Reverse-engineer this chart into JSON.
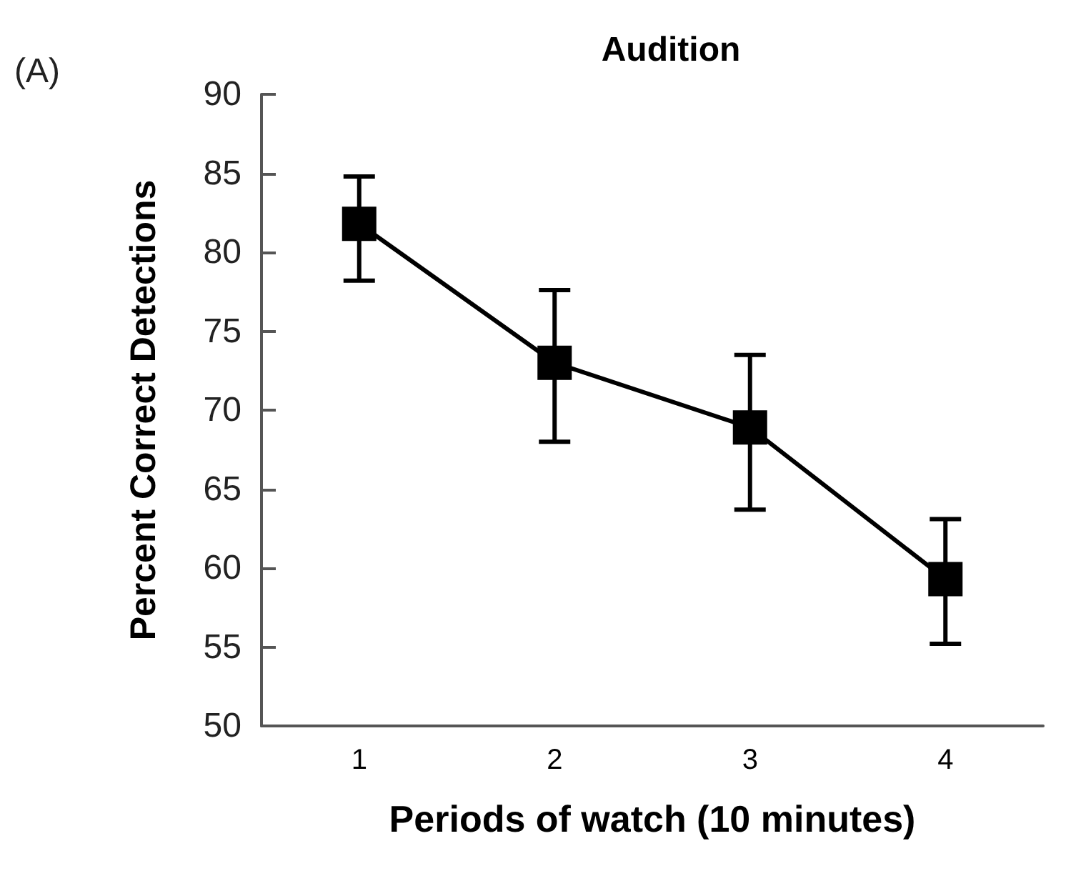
{
  "chart_data": {
    "type": "line",
    "title": "Audition",
    "xlabel": "Periods of watch (10 minutes)",
    "ylabel": "Percent Correct Detections",
    "annotations": [
      "(A)"
    ],
    "categories": [
      "1",
      "2",
      "3",
      "4"
    ],
    "series": [
      {
        "color": "#000000",
        "values": [
          81.8,
          73.0,
          68.9,
          59.3
        ],
        "errors": [
          [
            78.2,
            84.8
          ],
          [
            68.0,
            77.6
          ],
          [
            63.7,
            73.5
          ],
          [
            55.2,
            63.1
          ]
        ]
      }
    ],
    "ylim": [
      50,
      90
    ],
    "yticks": [
      50,
      55,
      60,
      65,
      70,
      75,
      80,
      85,
      90
    ],
    "marker": "square",
    "line_style": "solid"
  }
}
